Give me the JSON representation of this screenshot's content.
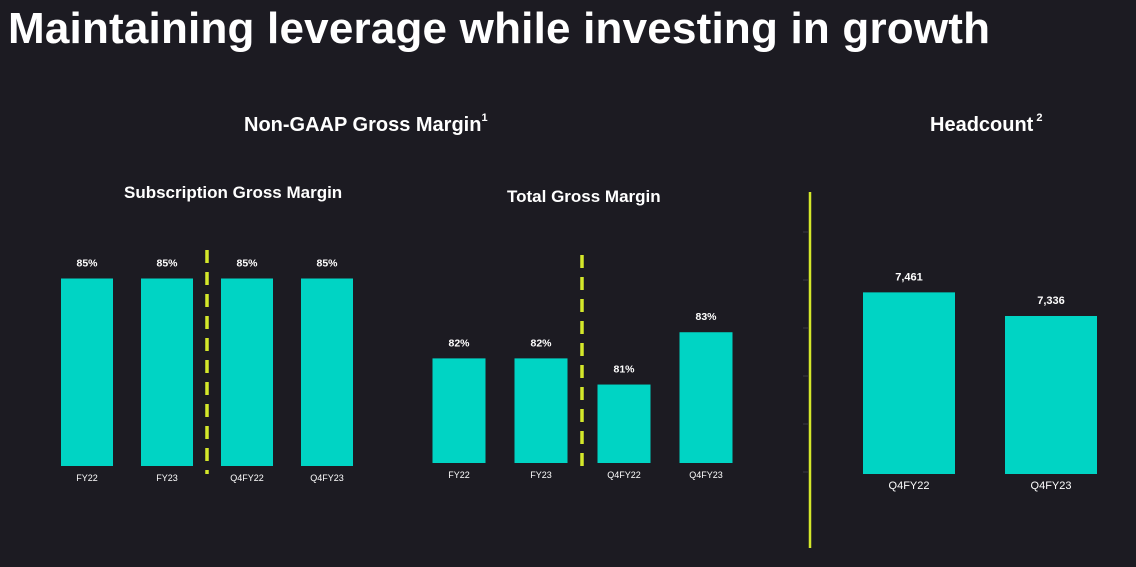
{
  "page": {
    "title": "Maintaining leverage while investing in growth",
    "accent_color": "#00d4c4",
    "divider_color": "#d4e82a"
  },
  "sections": {
    "gross_margin": {
      "title": "Non-GAAP Gross Margin",
      "footnote": "1"
    },
    "headcount": {
      "title": "Headcount",
      "footnote": "2"
    }
  },
  "chart_data": [
    {
      "type": "bar",
      "title": "Subscription Gross Margin",
      "categories": [
        "FY22",
        "FY23",
        "Q4FY22",
        "Q4FY23"
      ],
      "values": [
        85,
        85,
        85,
        85
      ],
      "labels": [
        "85%",
        "85%",
        "85%",
        "85%"
      ],
      "ylim": [
        70,
        90
      ],
      "divider_after_index": 1
    },
    {
      "type": "bar",
      "title": "Total Gross Margin",
      "categories": [
        "FY22",
        "FY23",
        "Q4FY22",
        "Q4FY23"
      ],
      "values": [
        82,
        82,
        81,
        83
      ],
      "labels": [
        "82%",
        "82%",
        "81%",
        "83%"
      ],
      "ylim": [
        78,
        84.5
      ],
      "divider_after_index": 1
    },
    {
      "type": "bar",
      "title": "Headcount",
      "categories": [
        "Q4FY22",
        "Q4FY23"
      ],
      "values": [
        7461,
        7336
      ],
      "labels": [
        "7,461",
        "7,336"
      ],
      "ylim": [
        6500,
        7500
      ]
    }
  ]
}
